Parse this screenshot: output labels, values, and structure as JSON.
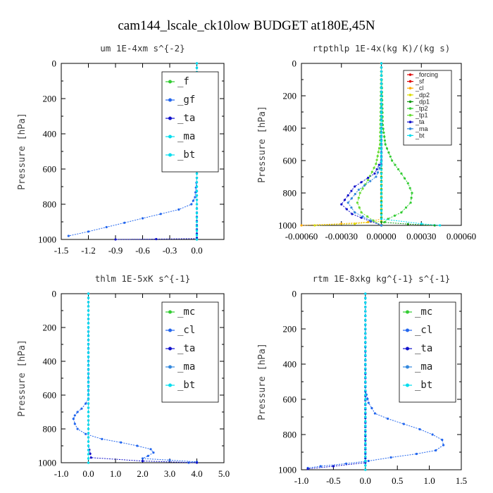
{
  "figure_title": "cam144_lscale_ck10low  BUDGET at180E,45N",
  "colors": {
    "green": "#33cc33",
    "blue": "#2266ee",
    "navy": "#1111cc",
    "cyan": "#00ddee",
    "red": "#dd0000",
    "orange": "#ffaa00",
    "yellow": "#dddd00",
    "darkgreen": "#119911",
    "lightgreen": "#66dd33",
    "steelblue": "#3388dd"
  },
  "chart_data": [
    {
      "type": "line",
      "title": "um  1E-4xm s^{-2}",
      "ylabel": "Pressure [hPa]",
      "xlim": [
        -1.5,
        0.3
      ],
      "ylim": [
        1000,
        0
      ],
      "xticks": [
        -1.5,
        -1.2,
        -0.9,
        -0.6,
        -0.3,
        0.0
      ],
      "xtick_labels": [
        "-1.5",
        "-1.2",
        "-0.9",
        "-0.6",
        "-0.3",
        "0.0"
      ],
      "yticks": [
        0,
        200,
        400,
        600,
        800,
        1000
      ],
      "legend_position": "top-right",
      "legend_font": "large",
      "series": [
        {
          "name": "_f",
          "color": "#33cc33",
          "x": [
            0.0,
            0.0,
            0.0,
            0.0
          ],
          "y": [
            0,
            400,
            800,
            1000
          ]
        },
        {
          "name": "_gf",
          "color": "#2266ee",
          "x": [
            0.0,
            0.0,
            -0.02,
            -0.06,
            -0.2,
            -0.4,
            -0.6,
            -0.8,
            -1.0,
            -1.2,
            -1.42
          ],
          "y": [
            0,
            650,
            760,
            800,
            830,
            855,
            880,
            905,
            930,
            955,
            980
          ]
        },
        {
          "name": "_ta",
          "color": "#1111cc",
          "x": [
            0.0,
            0.0,
            0.0,
            0.0,
            -0.45,
            -0.9
          ],
          "y": [
            0,
            800,
            990,
            995,
            998,
            1000
          ]
        },
        {
          "name": "_ma",
          "color": "#00ddee",
          "x": [
            0.0,
            0.0
          ],
          "y": [
            0,
            1000
          ]
        },
        {
          "name": "_bt",
          "color": "#00ddee",
          "x": [
            0.0,
            0.0
          ],
          "y": [
            0,
            1000
          ]
        }
      ]
    },
    {
      "type": "line",
      "title": "rtpthlp  1E-4x(kg K)/(kg s)",
      "ylabel": "Pressure [hPa]",
      "xlim": [
        -0.0006,
        0.0006
      ],
      "ylim": [
        1000,
        0
      ],
      "xticks": [
        -0.0006,
        -0.0003,
        0.0,
        0.0003,
        0.0006
      ],
      "xtick_labels": [
        "-0.00060",
        "-0.00030",
        "0.00000",
        "0.00030",
        "0.00060"
      ],
      "yticks": [
        0,
        200,
        400,
        600,
        800,
        1000
      ],
      "legend_position": "top-right",
      "legend_font": "small",
      "series": [
        {
          "name": "_forcing",
          "color": "#dd0000",
          "x": [
            0.0,
            0.0
          ],
          "y": [
            0,
            1000
          ]
        },
        {
          "name": "_sf",
          "color": "#dd0000",
          "x": [
            0.0,
            0.0
          ],
          "y": [
            0,
            1000
          ]
        },
        {
          "name": "_cl",
          "color": "#ffaa00",
          "x": [
            0.0,
            0.0,
            -0.0001,
            -0.0003,
            -0.0006
          ],
          "y": [
            0,
            960,
            980,
            990,
            1000
          ]
        },
        {
          "name": "_dp2",
          "color": "#dddd00",
          "x": [
            0.0,
            0.0,
            -0.0002,
            -0.0005
          ],
          "y": [
            0,
            975,
            990,
            1000
          ]
        },
        {
          "name": "_dp1",
          "color": "#119911",
          "x": [
            0.0,
            0.0,
            0.0002,
            0.0004
          ],
          "y": [
            0,
            980,
            992,
            1000
          ]
        },
        {
          "name": "_tp2",
          "color": "#33cc33",
          "x": [
            0.0,
            1e-05,
            3e-05,
            8e-05,
            0.00015,
            0.0002,
            0.00023,
            0.00022,
            0.00015,
            5e-05,
            0.0
          ],
          "y": [
            0,
            380,
            500,
            600,
            680,
            740,
            800,
            860,
            920,
            960,
            1000
          ]
        },
        {
          "name": "_tp1",
          "color": "#66dd33",
          "x": [
            0.0,
            -1e-05,
            -4e-05,
            -0.0001,
            -0.00016,
            -0.00018,
            -0.00015,
            -6e-05,
            0.0
          ],
          "y": [
            0,
            500,
            620,
            720,
            800,
            860,
            920,
            970,
            1000
          ]
        },
        {
          "name": "_ta",
          "color": "#1111cc",
          "x": [
            0.0,
            0.0,
            -5e-05,
            -0.0002,
            -0.0003,
            -0.00022,
            -8e-05,
            0.0
          ],
          "y": [
            0,
            600,
            680,
            760,
            870,
            930,
            975,
            1000
          ]
        },
        {
          "name": "_ma",
          "color": "#3388dd",
          "x": [
            0.0,
            0.0,
            -4e-05,
            -0.00017,
            -0.00025,
            -0.0002,
            -8e-05,
            0.0
          ],
          "y": [
            0,
            620,
            700,
            780,
            860,
            920,
            970,
            1000
          ]
        },
        {
          "name": "_bt",
          "color": "#00ddee",
          "x": [
            0.0,
            0.0,
            0.0003,
            0.00044
          ],
          "y": [
            0,
            960,
            990,
            1000
          ]
        }
      ]
    },
    {
      "type": "line",
      "title": "thlm  1E-5xK s^{-1}",
      "ylabel": "Pressure [hPa]",
      "xlim": [
        -1.0,
        5.0
      ],
      "ylim": [
        1000,
        0
      ],
      "xticks": [
        -1.0,
        0.0,
        1.0,
        2.0,
        3.0,
        4.0,
        5.0
      ],
      "xtick_labels": [
        "-1.0",
        "0.0",
        "1.0",
        "2.0",
        "3.0",
        "4.0",
        "5.0"
      ],
      "yticks": [
        0,
        200,
        400,
        600,
        800,
        1000
      ],
      "legend_position": "top-right",
      "legend_font": "large",
      "series": [
        {
          "name": "_mc",
          "color": "#33cc33",
          "x": [
            0.0,
            0.0
          ],
          "y": [
            0,
            1000
          ]
        },
        {
          "name": "_cl",
          "color": "#2266ee",
          "x": [
            0.0,
            0.0,
            -0.1,
            -0.25,
            -0.4,
            -0.5,
            -0.55,
            -0.5,
            -0.4,
            -0.1,
            0.5,
            1.2,
            1.8,
            2.3,
            2.4,
            2.2,
            2.0,
            3.0,
            4.0,
            3.7
          ],
          "y": [
            0,
            620,
            650,
            680,
            700,
            720,
            740,
            770,
            800,
            830,
            860,
            880,
            900,
            920,
            940,
            960,
            975,
            985,
            995,
            1000
          ]
        },
        {
          "name": "_ta",
          "color": "#1111cc",
          "x": [
            0.0,
            0.0,
            0.1,
            2.0,
            4.0
          ],
          "y": [
            0,
            900,
            970,
            990,
            1000
          ]
        },
        {
          "name": "_ma",
          "color": "#3388dd",
          "x": [
            0.0,
            0.0
          ],
          "y": [
            0,
            1000
          ]
        },
        {
          "name": "_bt",
          "color": "#00ddee",
          "x": [
            0.0,
            0.0
          ],
          "y": [
            0,
            1000
          ]
        }
      ]
    },
    {
      "type": "line",
      "title": "rtm  1E-8xkg kg^{-1} s^{-1}",
      "ylabel": "Pressure [hPa]",
      "xlim": [
        -1.0,
        1.5
      ],
      "ylim": [
        1000,
        0
      ],
      "xticks": [
        -1.0,
        -0.5,
        0.0,
        0.5,
        1.0,
        1.5
      ],
      "xtick_labels": [
        "-1.0",
        "-0.5",
        "0.0",
        "0.5",
        "1.0",
        "1.5"
      ],
      "yticks": [
        0,
        200,
        400,
        600,
        800,
        1000
      ],
      "legend_position": "top-right",
      "legend_font": "large",
      "series": [
        {
          "name": "_mc",
          "color": "#33cc33",
          "x": [
            0.0,
            0.0
          ],
          "y": [
            0,
            1000
          ]
        },
        {
          "name": "_cl",
          "color": "#2266ee",
          "x": [
            0.0,
            0.0,
            0.05,
            0.15,
            0.35,
            0.6,
            0.85,
            1.05,
            1.2,
            1.22,
            1.1,
            0.8,
            0.4,
            0.05,
            -0.3,
            -0.7,
            -0.9
          ],
          "y": [
            0,
            550,
            620,
            680,
            710,
            740,
            770,
            800,
            830,
            860,
            890,
            910,
            930,
            950,
            965,
            980,
            990
          ]
        },
        {
          "name": "_ta",
          "color": "#1111cc",
          "x": [
            0.0,
            0.0,
            -0.5,
            -0.9
          ],
          "y": [
            0,
            960,
            980,
            995
          ]
        },
        {
          "name": "_ma",
          "color": "#3388dd",
          "x": [
            0.0,
            0.0
          ],
          "y": [
            0,
            1000
          ]
        },
        {
          "name": "_bt",
          "color": "#00ddee",
          "x": [
            0.0,
            0.0
          ],
          "y": [
            0,
            1000
          ]
        }
      ]
    }
  ]
}
